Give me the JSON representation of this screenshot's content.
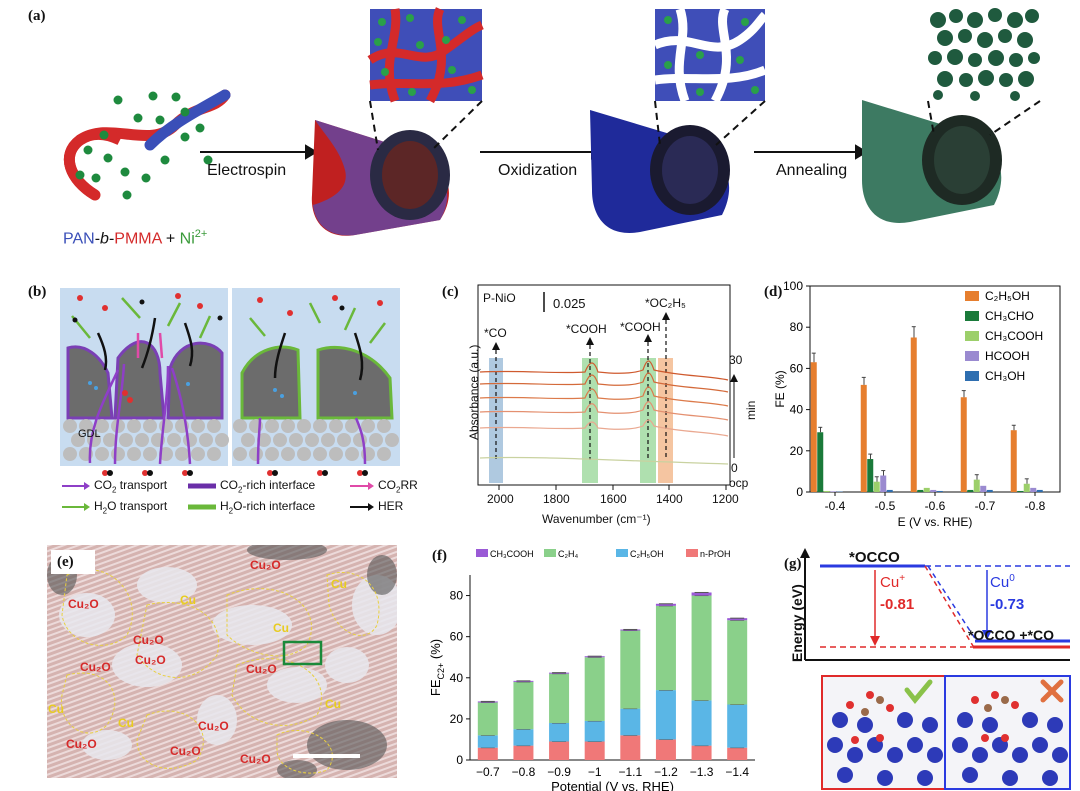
{
  "panel_a": {
    "label": "(a)",
    "steps": [
      "Electrospin",
      "Oxidization",
      "Annealing"
    ],
    "formula": {
      "pan": "PAN",
      "dash1": "-",
      "b": "b",
      "dash2": "-",
      "pmma": "PMMA",
      "plus": " + ",
      "ni": "Ni",
      "ni_sup": "2+"
    },
    "colors": {
      "pan": "#3a4fb8",
      "pmma": "#d42a2a",
      "ni": "#3a9a3a"
    }
  },
  "panel_b": {
    "label": "(b)",
    "gdl": "GDL",
    "legend": [
      {
        "text": "CO",
        "sub": "2",
        "rest": " transport",
        "color": "#8e3fc7",
        "type": "arrow"
      },
      {
        "text": "CO",
        "sub": "2",
        "rest": "-rich  interface",
        "color": "#6a2ea8",
        "type": "bar"
      },
      {
        "text": "CO",
        "sub": "2",
        "rest": "RR",
        "color": "#e04aa8",
        "type": "arrow"
      },
      {
        "text": "H",
        "sub": "2",
        "rest": "O  transport",
        "color": "#6ab83a",
        "type": "arrow"
      },
      {
        "text": "H",
        "sub": "2",
        "rest": "O-rich  interface",
        "color": "#6ab83a",
        "type": "bar"
      },
      {
        "text": "HER",
        "sub": "",
        "rest": "",
        "color": "#111111",
        "type": "arrow"
      }
    ]
  },
  "panel_c": {
    "label": "(c)",
    "sample": "P-NiO",
    "scale": "0.025",
    "peaks": [
      "*CO",
      "*COOH",
      "*COOH",
      "*OC₂H₅"
    ],
    "ylabel": "Absorbance (a.u.)",
    "xlabel": "Wavenumber (cm⁻¹)",
    "xticks": [
      "2000",
      "1800",
      "1600",
      "1400",
      "1200"
    ],
    "time_top": "30",
    "time_unit": "min",
    "time_bottom": "0",
    "ocp": "ocp"
  },
  "panel_d": {
    "label": "(d)",
    "chart_data": {
      "type": "bar",
      "categories": [
        "-0.4",
        "-0.5",
        "-0.6",
        "-0.7",
        "-0.8"
      ],
      "series": [
        {
          "name": "C₂H₅OH",
          "color": "#e67e2e",
          "values": [
            63,
            52,
            75,
            46,
            30
          ]
        },
        {
          "name": "CH₃CHO",
          "color": "#1a7a3a",
          "values": [
            29,
            16,
            1,
            1,
            0.5
          ]
        },
        {
          "name": "CH₃COOH",
          "color": "#9ccf6a",
          "values": [
            0.5,
            5,
            2,
            6,
            4
          ]
        },
        {
          "name": "HCOOH",
          "color": "#9a8ad0",
          "values": [
            0.3,
            8,
            1,
            3,
            2
          ]
        },
        {
          "name": "CH₃OH",
          "color": "#2e6eb0",
          "values": [
            0.2,
            1,
            0.5,
            1,
            1
          ]
        }
      ],
      "ylabel": "FE (%)",
      "xlabel": "E (V vs. RHE)",
      "ylim": [
        0,
        100
      ],
      "yticks": [
        "0",
        "20",
        "40",
        "60",
        "80",
        "100"
      ]
    }
  },
  "panel_e": {
    "label": "(e)",
    "regions": [
      "Cu₂O",
      "Cu₂O",
      "Cu",
      "Cu₂O",
      "Cu₂O",
      "Cu",
      "Cu",
      "Cu",
      "Cu₂O",
      "Cu₂O",
      "Cu",
      "Cu",
      "Cu₂O",
      "Cu₂O",
      "Cu₂O",
      "Cu₂O"
    ]
  },
  "panel_f": {
    "label": "(f)",
    "chart_data": {
      "type": "bar",
      "stacked": true,
      "categories": [
        "−0.7",
        "−0.8",
        "−0.9",
        "−1",
        "−1.1",
        "−1.2",
        "−1.3",
        "−1.4"
      ],
      "series": [
        {
          "name": "n-PrOH",
          "color": "#f07878",
          "values": [
            6,
            7,
            9,
            9,
            12,
            10,
            7,
            6
          ]
        },
        {
          "name": "C₂H₅OH",
          "color": "#5ab6e6",
          "values": [
            6,
            8,
            9,
            10,
            13,
            24,
            22,
            21
          ]
        },
        {
          "name": "C₂H₄",
          "color": "#8ad08a",
          "values": [
            16,
            23,
            24,
            31,
            38,
            41,
            51,
            41
          ]
        },
        {
          "name": "CH₃COOH",
          "color": "#9a5ad6",
          "values": [
            0.5,
            0.5,
            0.5,
            0.5,
            0.5,
            1,
            1.5,
            1
          ]
        }
      ],
      "totals": [
        28.5,
        38.5,
        42.5,
        50.5,
        63.5,
        76,
        81.5,
        69
      ],
      "ylabel": "FE",
      "ylabel_sub": "C2+",
      "ylabel_unit": " (%)",
      "xlabel": "Potential (V vs. RHE)",
      "ylim": [
        0,
        90
      ],
      "yticks": [
        "0",
        "20",
        "40",
        "60",
        "80"
      ]
    }
  },
  "panel_g": {
    "label": "(g)",
    "start": "*OCCO",
    "end": "*OCCO +*CO",
    "ylabel": "Energy (eV)",
    "cu_plus": {
      "name": "Cu",
      "sup": "+",
      "value": "-0.81",
      "color": "#e02a2a"
    },
    "cu_zero": {
      "name": "Cu",
      "sup": "0",
      "value": "-0.73",
      "color": "#2a3ae0"
    }
  }
}
